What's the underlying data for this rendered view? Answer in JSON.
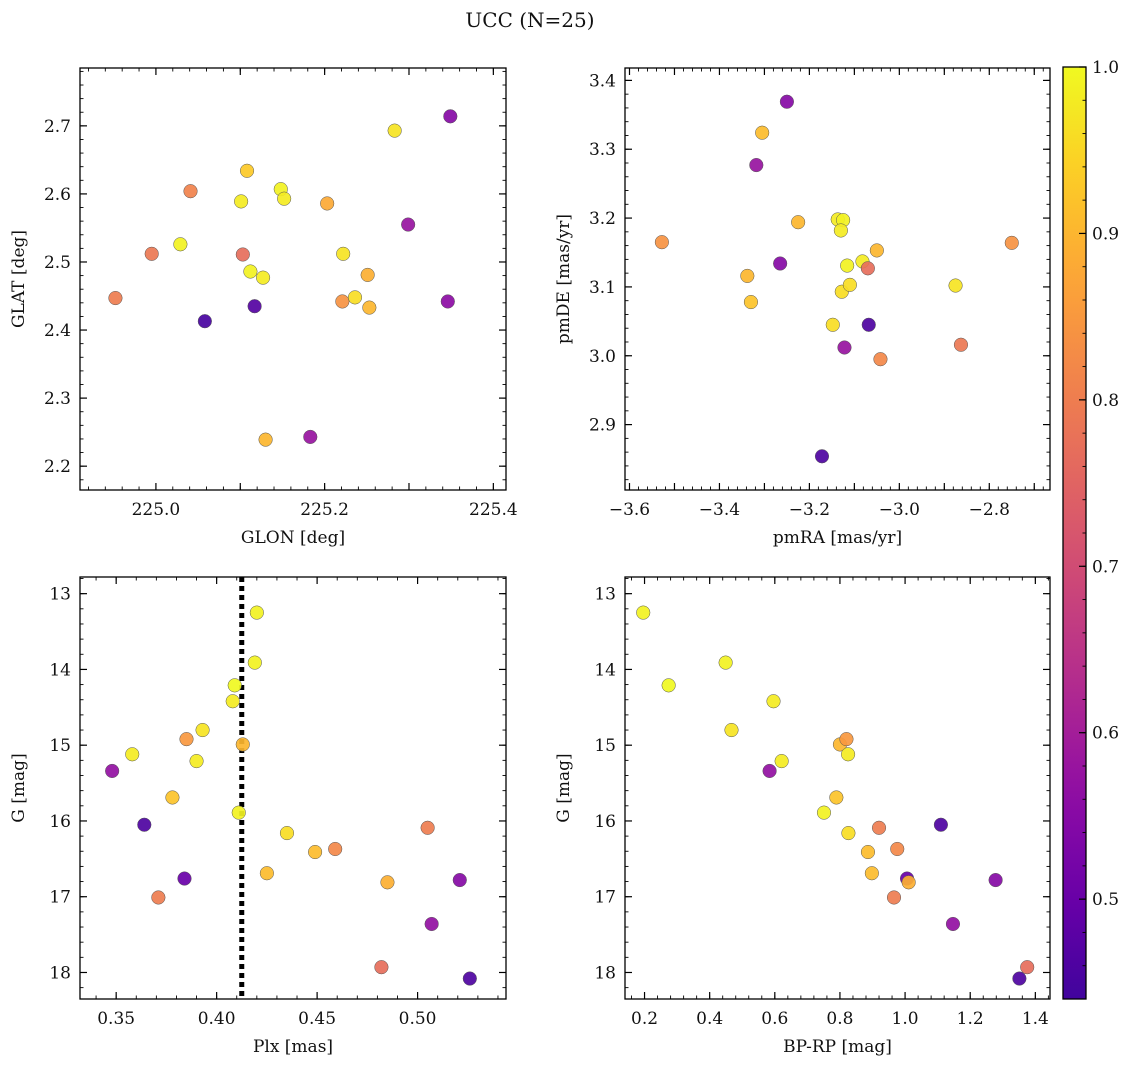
{
  "figure": {
    "title": "UCC (N=25)"
  },
  "colorbar": {
    "min": 0.44,
    "max": 1.0,
    "ticks": [
      "0.5",
      "0.6",
      "0.7",
      "0.8",
      "0.9",
      "1.0"
    ],
    "tick_values": [
      0.5,
      0.6,
      0.7,
      0.8,
      0.9,
      1.0
    ],
    "colormap": "plasma"
  },
  "chart_data": [
    {
      "type": "scatter",
      "xlabel": "GLON [deg]",
      "ylabel": "GLAT [deg]",
      "xlim": [
        224.91,
        225.415
      ],
      "ylim": [
        2.165,
        2.785
      ],
      "xticks": [
        225.0,
        225.1,
        225.2,
        225.3,
        225.4
      ],
      "xticklabels": [
        "225.0",
        "",
        "225.2",
        "",
        "225.4"
      ],
      "yticks": [
        2.2,
        2.3,
        2.4,
        2.5,
        2.6,
        2.7
      ],
      "yticklabels": [
        "2.2",
        "2.3",
        "2.4",
        "2.5",
        "2.6",
        "2.7"
      ],
      "y_inverted": false,
      "points": [
        {
          "x": 224.952,
          "y": 2.447,
          "c": 0.8
        },
        {
          "x": 224.995,
          "y": 2.512,
          "c": 0.79
        },
        {
          "x": 225.029,
          "y": 2.526,
          "c": 0.99
        },
        {
          "x": 225.041,
          "y": 2.604,
          "c": 0.81
        },
        {
          "x": 225.058,
          "y": 2.413,
          "c": 0.45
        },
        {
          "x": 225.101,
          "y": 2.589,
          "c": 0.98
        },
        {
          "x": 225.103,
          "y": 2.511,
          "c": 0.77
        },
        {
          "x": 225.108,
          "y": 2.634,
          "c": 0.93
        },
        {
          "x": 225.112,
          "y": 2.486,
          "c": 0.99
        },
        {
          "x": 225.117,
          "y": 2.435,
          "c": 0.47
        },
        {
          "x": 225.127,
          "y": 2.477,
          "c": 0.98
        },
        {
          "x": 225.13,
          "y": 2.239,
          "c": 0.9
        },
        {
          "x": 225.148,
          "y": 2.607,
          "c": 0.99
        },
        {
          "x": 225.152,
          "y": 2.593,
          "c": 0.98
        },
        {
          "x": 225.183,
          "y": 2.243,
          "c": 0.58
        },
        {
          "x": 225.203,
          "y": 2.586,
          "c": 0.88
        },
        {
          "x": 225.222,
          "y": 2.512,
          "c": 0.97
        },
        {
          "x": 225.221,
          "y": 2.442,
          "c": 0.84
        },
        {
          "x": 225.236,
          "y": 2.448,
          "c": 0.96
        },
        {
          "x": 225.251,
          "y": 2.481,
          "c": 0.89
        },
        {
          "x": 225.253,
          "y": 2.433,
          "c": 0.9
        },
        {
          "x": 225.283,
          "y": 2.693,
          "c": 0.97
        },
        {
          "x": 225.299,
          "y": 2.555,
          "c": 0.58
        },
        {
          "x": 225.346,
          "y": 2.442,
          "c": 0.56
        },
        {
          "x": 225.349,
          "y": 2.714,
          "c": 0.55
        }
      ]
    },
    {
      "type": "scatter",
      "xlabel": "pmRA [mas/yr]",
      "ylabel": "pmDE [mas/yr]",
      "xlim": [
        -3.61,
        -2.665
      ],
      "ylim": [
        2.805,
        3.418
      ],
      "xticks": [
        -3.6,
        -3.5,
        -3.4,
        -3.3,
        -3.2,
        -3.1,
        -3.0,
        -2.9,
        -2.8,
        -2.7
      ],
      "xticklabels": [
        "−3.6",
        "",
        "−3.4",
        "",
        "−3.2",
        "",
        "−3.0",
        "",
        "−2.8",
        ""
      ],
      "yticks": [
        2.9,
        3.0,
        3.1,
        3.2,
        3.3,
        3.4
      ],
      "yticklabels": [
        "2.9",
        "3.0",
        "3.1",
        "3.2",
        "3.3",
        "3.4"
      ],
      "y_inverted": false,
      "points": [
        {
          "x": -3.528,
          "y": 3.165,
          "c": 0.84
        },
        {
          "x": -3.338,
          "y": 3.116,
          "c": 0.9
        },
        {
          "x": -3.33,
          "y": 3.078,
          "c": 0.92
        },
        {
          "x": -3.318,
          "y": 3.277,
          "c": 0.58
        },
        {
          "x": -3.305,
          "y": 3.324,
          "c": 0.91
        },
        {
          "x": -3.25,
          "y": 3.369,
          "c": 0.55
        },
        {
          "x": -3.225,
          "y": 3.194,
          "c": 0.9
        },
        {
          "x": -3.172,
          "y": 2.854,
          "c": 0.46
        },
        {
          "x": -3.148,
          "y": 3.045,
          "c": 0.96
        },
        {
          "x": -3.137,
          "y": 3.198,
          "c": 0.98
        },
        {
          "x": -3.125,
          "y": 3.197,
          "c": 0.99
        },
        {
          "x": -3.13,
          "y": 3.182,
          "c": 0.98
        },
        {
          "x": -3.128,
          "y": 3.093,
          "c": 0.96
        },
        {
          "x": -3.122,
          "y": 3.012,
          "c": 0.58
        },
        {
          "x": -3.116,
          "y": 3.131,
          "c": 0.99
        },
        {
          "x": -3.11,
          "y": 3.103,
          "c": 0.96
        },
        {
          "x": -3.082,
          "y": 3.137,
          "c": 0.98
        },
        {
          "x": -3.07,
          "y": 3.127,
          "c": 0.77
        },
        {
          "x": -3.068,
          "y": 3.045,
          "c": 0.46
        },
        {
          "x": -3.05,
          "y": 3.153,
          "c": 0.9
        },
        {
          "x": -3.042,
          "y": 2.995,
          "c": 0.82
        },
        {
          "x": -3.265,
          "y": 3.134,
          "c": 0.55
        },
        {
          "x": -2.875,
          "y": 3.102,
          "c": 0.97
        },
        {
          "x": -2.863,
          "y": 3.016,
          "c": 0.79
        },
        {
          "x": -2.75,
          "y": 3.164,
          "c": 0.84
        }
      ]
    },
    {
      "type": "scatter",
      "xlabel": "Plx [mas]",
      "ylabel": "G [mag]",
      "xlim": [
        0.332,
        0.544
      ],
      "ylim": [
        12.78,
        18.35
      ],
      "xticks": [
        0.35,
        0.4,
        0.45,
        0.5
      ],
      "xticklabels": [
        "0.35",
        "0.40",
        "0.45",
        "0.50"
      ],
      "yticks": [
        13,
        14,
        15,
        16,
        17,
        18
      ],
      "yticklabels": [
        "13",
        "14",
        "15",
        "16",
        "17",
        "18"
      ],
      "y_inverted": true,
      "vline": 0.4125,
      "points": [
        {
          "x": 0.348,
          "y": 15.34,
          "c": 0.57
        },
        {
          "x": 0.358,
          "y": 15.12,
          "c": 0.98
        },
        {
          "x": 0.364,
          "y": 16.05,
          "c": 0.46
        },
        {
          "x": 0.371,
          "y": 17.01,
          "c": 0.8
        },
        {
          "x": 0.378,
          "y": 15.69,
          "c": 0.92
        },
        {
          "x": 0.384,
          "y": 16.76,
          "c": 0.5
        },
        {
          "x": 0.385,
          "y": 14.92,
          "c": 0.85
        },
        {
          "x": 0.39,
          "y": 15.21,
          "c": 0.98
        },
        {
          "x": 0.393,
          "y": 14.8,
          "c": 0.97
        },
        {
          "x": 0.408,
          "y": 14.42,
          "c": 0.98
        },
        {
          "x": 0.409,
          "y": 14.21,
          "c": 1.0
        },
        {
          "x": 0.411,
          "y": 15.89,
          "c": 0.99
        },
        {
          "x": 0.413,
          "y": 14.99,
          "c": 0.9
        },
        {
          "x": 0.419,
          "y": 13.91,
          "c": 0.99
        },
        {
          "x": 0.42,
          "y": 13.25,
          "c": 0.99
        },
        {
          "x": 0.425,
          "y": 16.69,
          "c": 0.91
        },
        {
          "x": 0.435,
          "y": 16.16,
          "c": 0.96
        },
        {
          "x": 0.449,
          "y": 16.41,
          "c": 0.91
        },
        {
          "x": 0.459,
          "y": 16.37,
          "c": 0.82
        },
        {
          "x": 0.482,
          "y": 17.93,
          "c": 0.77
        },
        {
          "x": 0.485,
          "y": 16.81,
          "c": 0.89
        },
        {
          "x": 0.505,
          "y": 16.09,
          "c": 0.8
        },
        {
          "x": 0.507,
          "y": 17.36,
          "c": 0.57
        },
        {
          "x": 0.521,
          "y": 16.78,
          "c": 0.55
        },
        {
          "x": 0.526,
          "y": 18.08,
          "c": 0.46
        }
      ]
    },
    {
      "type": "scatter",
      "xlabel": "BP-RP [mag]",
      "ylabel": "G [mag]",
      "xlim": [
        0.14,
        1.445
      ],
      "ylim": [
        12.78,
        18.35
      ],
      "xticks": [
        0.2,
        0.4,
        0.6,
        0.8,
        1.0,
        1.2,
        1.4
      ],
      "xticklabels": [
        "0.2",
        "0.4",
        "0.6",
        "0.8",
        "1.0",
        "1.2",
        "1.4"
      ],
      "yticks": [
        13,
        14,
        15,
        16,
        17,
        18
      ],
      "yticklabels": [
        "13",
        "14",
        "15",
        "16",
        "17",
        "18"
      ],
      "y_inverted": true,
      "points": [
        {
          "x": 0.196,
          "y": 13.25,
          "c": 0.99
        },
        {
          "x": 0.274,
          "y": 14.21,
          "c": 1.0
        },
        {
          "x": 0.449,
          "y": 13.91,
          "c": 0.99
        },
        {
          "x": 0.467,
          "y": 14.8,
          "c": 0.97
        },
        {
          "x": 0.584,
          "y": 15.34,
          "c": 0.57
        },
        {
          "x": 0.596,
          "y": 14.42,
          "c": 0.98
        },
        {
          "x": 0.621,
          "y": 15.21,
          "c": 0.98
        },
        {
          "x": 0.751,
          "y": 15.89,
          "c": 0.99
        },
        {
          "x": 0.789,
          "y": 15.69,
          "c": 0.92
        },
        {
          "x": 0.8,
          "y": 14.99,
          "c": 0.9
        },
        {
          "x": 0.82,
          "y": 14.92,
          "c": 0.85
        },
        {
          "x": 0.825,
          "y": 15.12,
          "c": 0.98
        },
        {
          "x": 0.826,
          "y": 16.16,
          "c": 0.96
        },
        {
          "x": 0.886,
          "y": 16.41,
          "c": 0.91
        },
        {
          "x": 0.898,
          "y": 16.69,
          "c": 0.91
        },
        {
          "x": 0.92,
          "y": 16.09,
          "c": 0.8
        },
        {
          "x": 0.966,
          "y": 17.01,
          "c": 0.8
        },
        {
          "x": 0.976,
          "y": 16.37,
          "c": 0.82
        },
        {
          "x": 1.006,
          "y": 16.76,
          "c": 0.5
        },
        {
          "x": 1.011,
          "y": 16.81,
          "c": 0.89
        },
        {
          "x": 1.11,
          "y": 16.05,
          "c": 0.46
        },
        {
          "x": 1.147,
          "y": 17.36,
          "c": 0.57
        },
        {
          "x": 1.278,
          "y": 16.78,
          "c": 0.55
        },
        {
          "x": 1.351,
          "y": 18.08,
          "c": 0.46
        },
        {
          "x": 1.375,
          "y": 17.93,
          "c": 0.77
        }
      ]
    }
  ]
}
